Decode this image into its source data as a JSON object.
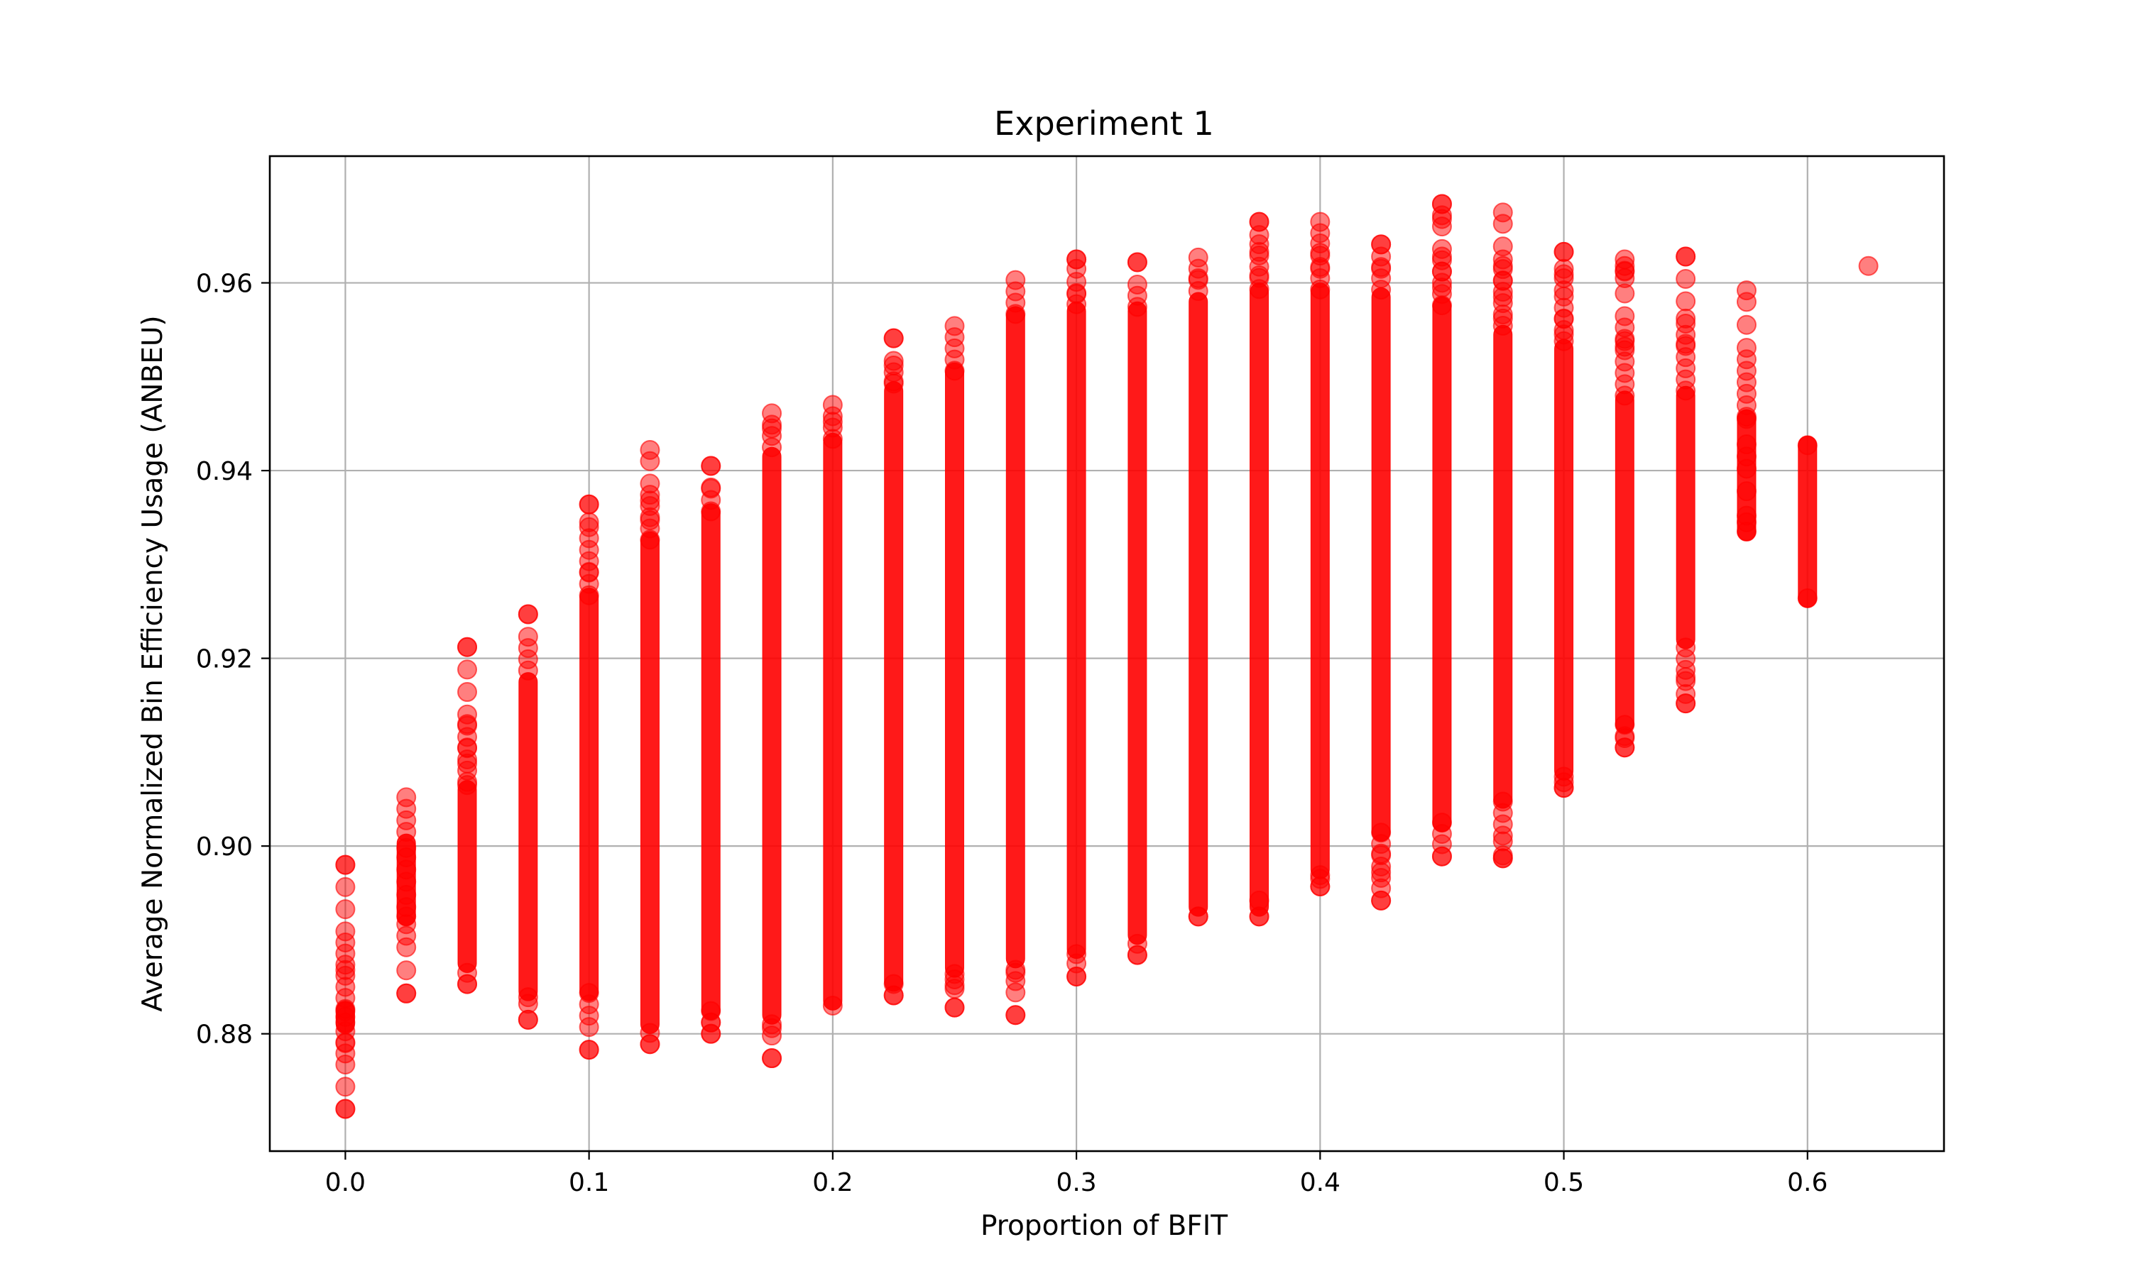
{
  "chart_data": {
    "type": "scatter",
    "title": "Experiment 1",
    "xlabel": "Proportion of BFIT",
    "ylabel": "Average Normalized Bin Efficiency Usage (ANBEU)",
    "xlim": [
      -0.031,
      0.656
    ],
    "ylim": [
      0.8675,
      0.9735
    ],
    "xticks": [
      0.0,
      0.1,
      0.2,
      0.3,
      0.4,
      0.5,
      0.6
    ],
    "xtick_labels": [
      "0.0",
      "0.1",
      "0.2",
      "0.3",
      "0.4",
      "0.5",
      "0.6"
    ],
    "yticks": [
      0.88,
      0.9,
      0.92,
      0.94,
      0.96
    ],
    "ytick_labels": [
      "0.88",
      "0.90",
      "0.92",
      "0.94",
      "0.96"
    ],
    "grid": true,
    "marker_color": "#ff0000",
    "marker_alpha": 0.5,
    "columns": [
      {
        "x": 0.0,
        "min": 0.872,
        "max": 0.898,
        "dense_min": 0.881,
        "dense_max": 0.8825
      },
      {
        "x": 0.025,
        "min": 0.8843,
        "max": 0.9052,
        "dense_min": 0.8925,
        "dense_max": 0.9003
      },
      {
        "x": 0.05,
        "min": 0.8853,
        "max": 0.9212,
        "dense_min": 0.8875,
        "dense_max": 0.906
      },
      {
        "x": 0.075,
        "min": 0.8815,
        "max": 0.9247,
        "dense_min": 0.8845,
        "dense_max": 0.9175
      },
      {
        "x": 0.1,
        "min": 0.8783,
        "max": 0.9364,
        "dense_min": 0.8845,
        "dense_max": 0.9265
      },
      {
        "x": 0.125,
        "min": 0.8789,
        "max": 0.9422,
        "dense_min": 0.881,
        "dense_max": 0.9325
      },
      {
        "x": 0.15,
        "min": 0.88,
        "max": 0.9405,
        "dense_min": 0.8825,
        "dense_max": 0.9355
      },
      {
        "x": 0.175,
        "min": 0.8774,
        "max": 0.9461,
        "dense_min": 0.882,
        "dense_max": 0.9415
      },
      {
        "x": 0.2,
        "min": 0.883,
        "max": 0.947,
        "dense_min": 0.8835,
        "dense_max": 0.943
      },
      {
        "x": 0.225,
        "min": 0.8841,
        "max": 0.9541,
        "dense_min": 0.8855,
        "dense_max": 0.9485
      },
      {
        "x": 0.25,
        "min": 0.8828,
        "max": 0.9554,
        "dense_min": 0.887,
        "dense_max": 0.9505
      },
      {
        "x": 0.275,
        "min": 0.882,
        "max": 0.9603,
        "dense_min": 0.888,
        "dense_max": 0.9565
      },
      {
        "x": 0.3,
        "min": 0.8861,
        "max": 0.9625,
        "dense_min": 0.889,
        "dense_max": 0.957
      },
      {
        "x": 0.325,
        "min": 0.8884,
        "max": 0.9622,
        "dense_min": 0.8905,
        "dense_max": 0.957
      },
      {
        "x": 0.35,
        "min": 0.8925,
        "max": 0.9627,
        "dense_min": 0.8935,
        "dense_max": 0.958
      },
      {
        "x": 0.375,
        "min": 0.8925,
        "max": 0.9665,
        "dense_min": 0.8935,
        "dense_max": 0.959
      },
      {
        "x": 0.4,
        "min": 0.8957,
        "max": 0.9665,
        "dense_min": 0.8975,
        "dense_max": 0.959
      },
      {
        "x": 0.425,
        "min": 0.8942,
        "max": 0.9641,
        "dense_min": 0.9015,
        "dense_max": 0.9585
      },
      {
        "x": 0.45,
        "min": 0.8989,
        "max": 0.9684,
        "dense_min": 0.9025,
        "dense_max": 0.9575
      },
      {
        "x": 0.475,
        "min": 0.8987,
        "max": 0.9675,
        "dense_min": 0.905,
        "dense_max": 0.9545
      },
      {
        "x": 0.5,
        "min": 0.9062,
        "max": 0.9633,
        "dense_min": 0.908,
        "dense_max": 0.953
      },
      {
        "x": 0.525,
        "min": 0.9105,
        "max": 0.9625,
        "dense_min": 0.913,
        "dense_max": 0.9475
      },
      {
        "x": 0.55,
        "min": 0.9152,
        "max": 0.9628,
        "dense_min": 0.922,
        "dense_max": 0.948
      },
      {
        "x": 0.575,
        "min": 0.9335,
        "max": 0.9592,
        "dense_min": 0.9335,
        "dense_max": 0.9455
      },
      {
        "x": 0.6,
        "min": 0.9264,
        "max": 0.9427,
        "dense_min": 0.9264,
        "dense_max": 0.9427
      },
      {
        "x": 0.625,
        "min": 0.9618,
        "max": 0.9618,
        "dense_min": 0.9618,
        "dense_max": 0.9618
      }
    ],
    "sample_points": [
      {
        "x": 0.0,
        "y": 0.872
      },
      {
        "x": 0.0,
        "y": 0.879
      },
      {
        "x": 0.0,
        "y": 0.8812
      },
      {
        "x": 0.0,
        "y": 0.8818
      },
      {
        "x": 0.0,
        "y": 0.8824
      },
      {
        "x": 0.0,
        "y": 0.8868
      },
      {
        "x": 0.0,
        "y": 0.898
      },
      {
        "x": 0.025,
        "y": 0.8843
      },
      {
        "x": 0.025,
        "y": 0.8925
      },
      {
        "x": 0.025,
        "y": 0.8935
      },
      {
        "x": 0.025,
        "y": 0.8948
      },
      {
        "x": 0.025,
        "y": 0.8962
      },
      {
        "x": 0.025,
        "y": 0.8975
      },
      {
        "x": 0.025,
        "y": 0.8988
      },
      {
        "x": 0.025,
        "y": 0.8998
      },
      {
        "x": 0.025,
        "y": 0.9052
      },
      {
        "x": 0.05,
        "y": 0.8853
      },
      {
        "x": 0.05,
        "y": 0.9065
      },
      {
        "x": 0.05,
        "y": 0.9088
      },
      {
        "x": 0.05,
        "y": 0.9105
      },
      {
        "x": 0.05,
        "y": 0.913
      },
      {
        "x": 0.05,
        "y": 0.9212
      },
      {
        "x": 0.075,
        "y": 0.8815
      },
      {
        "x": 0.075,
        "y": 0.8832
      },
      {
        "x": 0.075,
        "y": 0.9247
      },
      {
        "x": 0.1,
        "y": 0.8783
      },
      {
        "x": 0.1,
        "y": 0.9292
      },
      {
        "x": 0.1,
        "y": 0.9328
      },
      {
        "x": 0.1,
        "y": 0.9345
      },
      {
        "x": 0.1,
        "y": 0.9364
      },
      {
        "x": 0.125,
        "y": 0.8789
      },
      {
        "x": 0.125,
        "y": 0.9347
      },
      {
        "x": 0.125,
        "y": 0.9368
      },
      {
        "x": 0.125,
        "y": 0.9422
      },
      {
        "x": 0.15,
        "y": 0.88
      },
      {
        "x": 0.15,
        "y": 0.8812
      },
      {
        "x": 0.15,
        "y": 0.9382
      },
      {
        "x": 0.15,
        "y": 0.9405
      },
      {
        "x": 0.175,
        "y": 0.8774
      },
      {
        "x": 0.175,
        "y": 0.8806
      },
      {
        "x": 0.175,
        "y": 0.9445
      },
      {
        "x": 0.175,
        "y": 0.9461
      },
      {
        "x": 0.2,
        "y": 0.9452
      },
      {
        "x": 0.2,
        "y": 0.947
      },
      {
        "x": 0.225,
        "y": 0.8841
      },
      {
        "x": 0.225,
        "y": 0.9495
      },
      {
        "x": 0.225,
        "y": 0.9512
      },
      {
        "x": 0.225,
        "y": 0.9541
      },
      {
        "x": 0.25,
        "y": 0.8828
      },
      {
        "x": 0.25,
        "y": 0.8848
      },
      {
        "x": 0.25,
        "y": 0.8858
      },
      {
        "x": 0.25,
        "y": 0.9554
      },
      {
        "x": 0.275,
        "y": 0.882
      },
      {
        "x": 0.275,
        "y": 0.8865
      },
      {
        "x": 0.275,
        "y": 0.9603
      },
      {
        "x": 0.3,
        "y": 0.8861
      },
      {
        "x": 0.3,
        "y": 0.8875
      },
      {
        "x": 0.3,
        "y": 0.9588
      },
      {
        "x": 0.3,
        "y": 0.9615
      },
      {
        "x": 0.3,
        "y": 0.9625
      },
      {
        "x": 0.325,
        "y": 0.8884
      },
      {
        "x": 0.325,
        "y": 0.9622
      },
      {
        "x": 0.35,
        "y": 0.8925
      },
      {
        "x": 0.35,
        "y": 0.9605
      },
      {
        "x": 0.35,
        "y": 0.9627
      },
      {
        "x": 0.375,
        "y": 0.8925
      },
      {
        "x": 0.375,
        "y": 0.8942
      },
      {
        "x": 0.375,
        "y": 0.9608
      },
      {
        "x": 0.375,
        "y": 0.9633
      },
      {
        "x": 0.375,
        "y": 0.9651
      },
      {
        "x": 0.375,
        "y": 0.9665
      },
      {
        "x": 0.4,
        "y": 0.8957
      },
      {
        "x": 0.4,
        "y": 0.8965
      },
      {
        "x": 0.4,
        "y": 0.9615
      },
      {
        "x": 0.4,
        "y": 0.9632
      },
      {
        "x": 0.4,
        "y": 0.9642
      },
      {
        "x": 0.4,
        "y": 0.9665
      },
      {
        "x": 0.425,
        "y": 0.8942
      },
      {
        "x": 0.425,
        "y": 0.8955
      },
      {
        "x": 0.425,
        "y": 0.8972
      },
      {
        "x": 0.425,
        "y": 0.8992
      },
      {
        "x": 0.425,
        "y": 0.9615
      },
      {
        "x": 0.425,
        "y": 0.9628
      },
      {
        "x": 0.425,
        "y": 0.9641
      },
      {
        "x": 0.45,
        "y": 0.8989
      },
      {
        "x": 0.45,
        "y": 0.9002
      },
      {
        "x": 0.45,
        "y": 0.9595
      },
      {
        "x": 0.45,
        "y": 0.9612
      },
      {
        "x": 0.45,
        "y": 0.9628
      },
      {
        "x": 0.45,
        "y": 0.9668
      },
      {
        "x": 0.45,
        "y": 0.9672
      },
      {
        "x": 0.45,
        "y": 0.9684
      },
      {
        "x": 0.475,
        "y": 0.8987
      },
      {
        "x": 0.475,
        "y": 0.899
      },
      {
        "x": 0.475,
        "y": 0.9005
      },
      {
        "x": 0.475,
        "y": 0.9562
      },
      {
        "x": 0.475,
        "y": 0.9585
      },
      {
        "x": 0.475,
        "y": 0.9602
      },
      {
        "x": 0.475,
        "y": 0.9618
      },
      {
        "x": 0.475,
        "y": 0.9625
      },
      {
        "x": 0.475,
        "y": 0.9675
      },
      {
        "x": 0.5,
        "y": 0.9062
      },
      {
        "x": 0.5,
        "y": 0.9068
      },
      {
        "x": 0.5,
        "y": 0.9545
      },
      {
        "x": 0.5,
        "y": 0.9562
      },
      {
        "x": 0.5,
        "y": 0.9592
      },
      {
        "x": 0.5,
        "y": 0.9605
      },
      {
        "x": 0.5,
        "y": 0.9615
      },
      {
        "x": 0.5,
        "y": 0.9633
      },
      {
        "x": 0.525,
        "y": 0.9105
      },
      {
        "x": 0.525,
        "y": 0.9115
      },
      {
        "x": 0.525,
        "y": 0.9532
      },
      {
        "x": 0.525,
        "y": 0.9538
      },
      {
        "x": 0.525,
        "y": 0.9605
      },
      {
        "x": 0.525,
        "y": 0.9612
      },
      {
        "x": 0.525,
        "y": 0.9618
      },
      {
        "x": 0.525,
        "y": 0.9625
      },
      {
        "x": 0.55,
        "y": 0.9152
      },
      {
        "x": 0.55,
        "y": 0.9162
      },
      {
        "x": 0.55,
        "y": 0.918
      },
      {
        "x": 0.55,
        "y": 0.9535
      },
      {
        "x": 0.55,
        "y": 0.9562
      },
      {
        "x": 0.55,
        "y": 0.9628
      },
      {
        "x": 0.575,
        "y": 0.9335
      },
      {
        "x": 0.575,
        "y": 0.9345
      },
      {
        "x": 0.575,
        "y": 0.9352
      },
      {
        "x": 0.575,
        "y": 0.9378
      },
      {
        "x": 0.575,
        "y": 0.9402
      },
      {
        "x": 0.575,
        "y": 0.9415
      },
      {
        "x": 0.575,
        "y": 0.9428
      },
      {
        "x": 0.575,
        "y": 0.9455
      },
      {
        "x": 0.575,
        "y": 0.9592
      },
      {
        "x": 0.6,
        "y": 0.9264
      },
      {
        "x": 0.6,
        "y": 0.9427
      },
      {
        "x": 0.625,
        "y": 0.9618
      }
    ]
  }
}
